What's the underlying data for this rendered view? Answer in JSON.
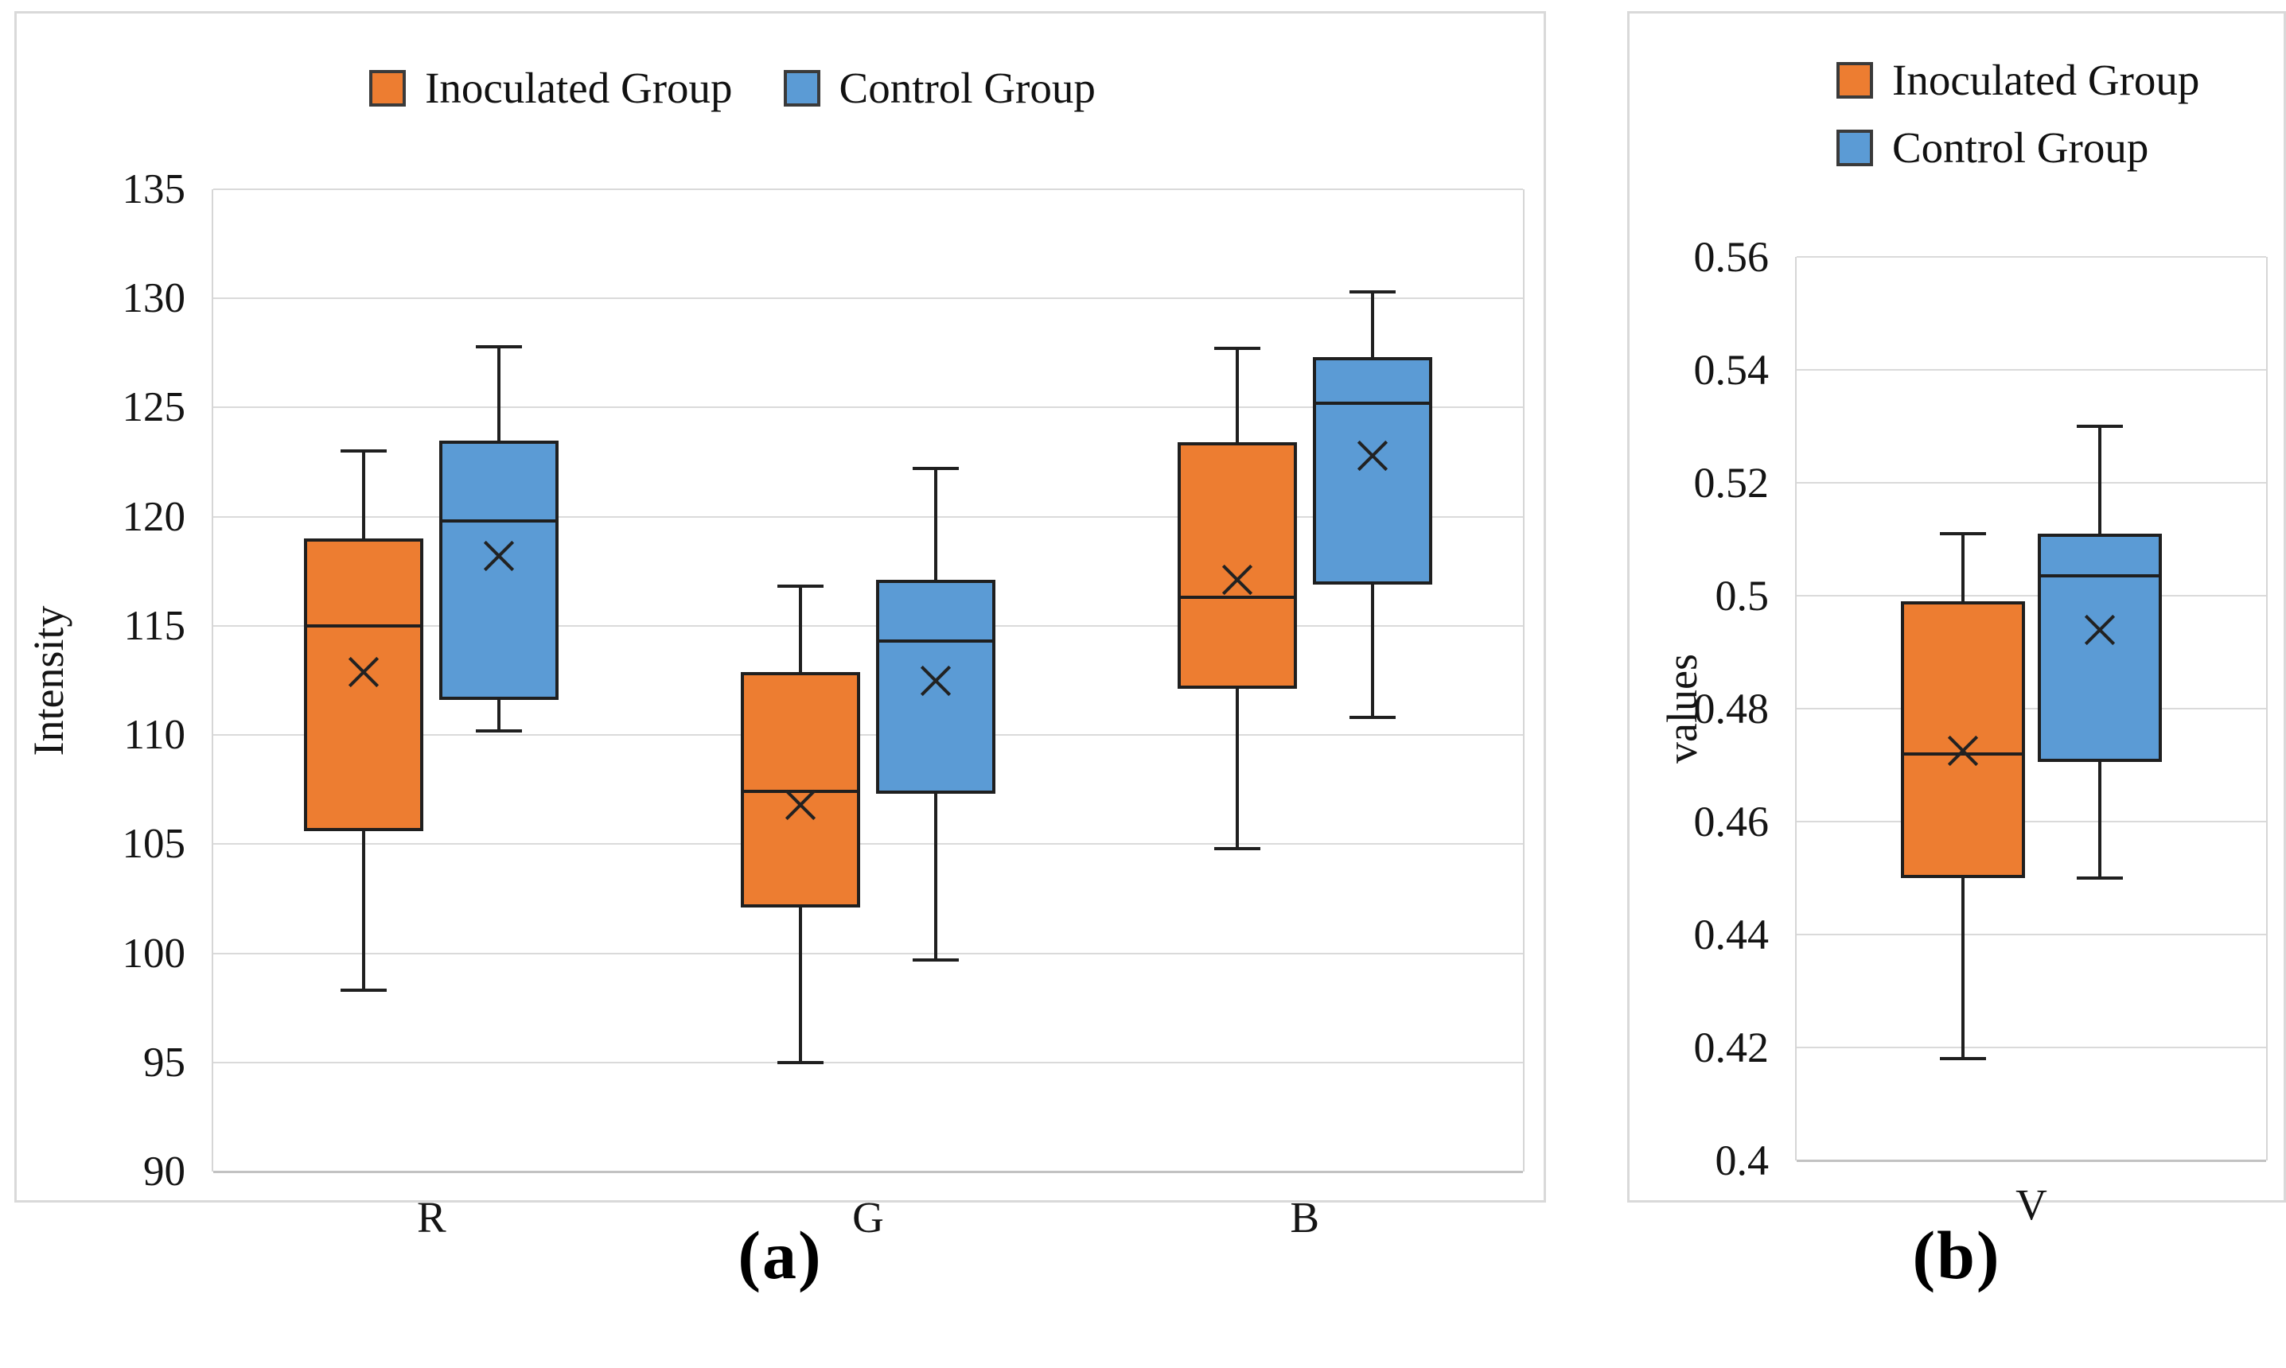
{
  "figure": {
    "caption_a": "(a)",
    "caption_b": "(b)",
    "colors": {
      "inoculated": "#ED7D31",
      "control": "#5B9BD5",
      "box_border": "#1F1F1F",
      "gridline": "#DADADA",
      "panel_border": "#D9D9D9",
      "text": "#141414"
    }
  },
  "legend": {
    "inoculated_label": "Inoculated Group",
    "control_label": "Control Group"
  },
  "chart_data": [
    {
      "type": "boxplot",
      "panel": "a",
      "title": "",
      "ylabel": "Intensity",
      "xlabel": "",
      "categories": [
        "R",
        "G",
        "B"
      ],
      "ylim": [
        90,
        135
      ],
      "yticks": [
        135,
        130,
        125,
        120,
        115,
        110,
        105,
        100,
        95,
        90
      ],
      "ytick_labels": [
        "135",
        "130",
        "125",
        "120",
        "115",
        "110",
        "105",
        "100",
        "95",
        "90"
      ],
      "grid": true,
      "legend_position": "top-center-horizontal",
      "series": [
        {
          "name": "Inoculated Group",
          "color": "#ED7D31",
          "boxes": [
            {
              "category": "R",
              "min": 98.3,
              "q1": 105.6,
              "median": 115.0,
              "mean": 112.9,
              "q3": 119.0,
              "max": 123.0
            },
            {
              "category": "G",
              "min": 95.0,
              "q1": 102.1,
              "median": 107.4,
              "mean": 106.8,
              "q3": 112.9,
              "max": 116.8
            },
            {
              "category": "B",
              "min": 104.8,
              "q1": 112.1,
              "median": 116.3,
              "mean": 117.1,
              "q3": 123.4,
              "max": 127.7
            }
          ]
        },
        {
          "name": "Control Group",
          "color": "#5B9BD5",
          "boxes": [
            {
              "category": "R",
              "min": 110.2,
              "q1": 111.6,
              "median": 119.8,
              "mean": 118.2,
              "q3": 123.5,
              "max": 127.8
            },
            {
              "category": "G",
              "min": 99.7,
              "q1": 107.3,
              "median": 114.3,
              "mean": 112.5,
              "q3": 117.1,
              "max": 122.2
            },
            {
              "category": "B",
              "min": 110.8,
              "q1": 116.9,
              "median": 125.2,
              "mean": 122.8,
              "q3": 127.3,
              "max": 130.3
            }
          ]
        }
      ]
    },
    {
      "type": "boxplot",
      "panel": "b",
      "title": "",
      "ylabel": "values",
      "xlabel": "",
      "categories": [
        "V"
      ],
      "ylim": [
        0.4,
        0.56
      ],
      "yticks": [
        0.56,
        0.54,
        0.52,
        0.5,
        0.48,
        0.46,
        0.44,
        0.42,
        0.4
      ],
      "ytick_labels": [
        "0.56",
        "0.54",
        "0.52",
        "0.5",
        "0.48",
        "0.46",
        "0.44",
        "0.42",
        "0.4"
      ],
      "grid": true,
      "legend_position": "top-left-stacked",
      "series": [
        {
          "name": "Inoculated Group",
          "color": "#ED7D31",
          "boxes": [
            {
              "category": "V",
              "min": 0.418,
              "q1": 0.45,
              "median": 0.472,
              "mean": 0.4725,
              "q3": 0.499,
              "max": 0.511
            }
          ]
        },
        {
          "name": "Control Group",
          "color": "#5B9BD5",
          "boxes": [
            {
              "category": "V",
              "min": 0.45,
              "q1": 0.4705,
              "median": 0.5035,
              "mean": 0.494,
              "q3": 0.511,
              "max": 0.53
            }
          ]
        }
      ]
    }
  ]
}
